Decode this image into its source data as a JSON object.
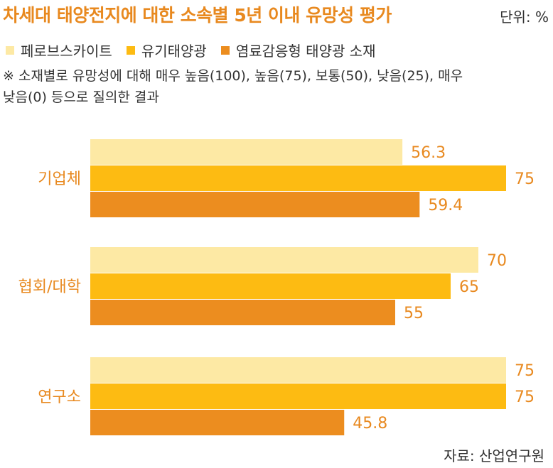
{
  "title": "차세대 태양전지에 대한 소속별 5년 이내 유망성 평가",
  "unit": "단위: %",
  "note_lines": [
    "※ 소재별로 유망성에 대해 매우 높음(100), 높음(75), 보통(50), 낮음(25), 매우",
    "낮음(0) 등으로 질의한 결과"
  ],
  "source": "자료: 산업연구원",
  "colors": {
    "title": "#e8891f",
    "s1": "#fde9a4",
    "s2": "#fdbb12",
    "s3": "#ec8d1f"
  },
  "chart_data": {
    "type": "bar",
    "orientation": "horizontal",
    "title": "차세대 태양전지에 대한 소속별 5년 이내 유망성 평가",
    "unit": "단위: %",
    "categories": [
      "기업체",
      "협회/대학",
      "연구소"
    ],
    "series": [
      {
        "name": "페로브스카이트",
        "values": [
          56.3,
          70,
          75
        ]
      },
      {
        "name": "유기태양광",
        "values": [
          75,
          65,
          75
        ]
      },
      {
        "name": "염료감응형 태양광 소재",
        "values": [
          59.4,
          55,
          45.8
        ]
      }
    ],
    "xlim": [
      0,
      100
    ],
    "grid": false,
    "legend": "top-left"
  }
}
